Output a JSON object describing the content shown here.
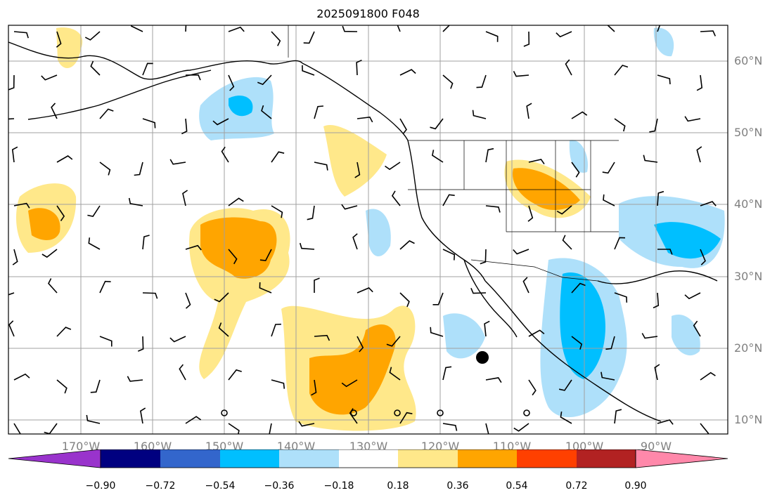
{
  "title": "2025091800 F048",
  "lat_labels": [
    "60°N",
    "50°N",
    "40°N",
    "30°N",
    "20°N",
    "10°N"
  ],
  "lon_labels": [
    "170°W",
    "160°W",
    "150°W",
    "140°W",
    "130°W",
    "120°W",
    "110°W",
    "100°W",
    "90°W"
  ],
  "colorbar": {
    "tick_labels": [
      "−0.90",
      "−0.72",
      "−0.54",
      "−0.36",
      "−0.18",
      "0.18",
      "0.36",
      "0.54",
      "0.72",
      "0.90"
    ],
    "colors": [
      "#9933cc",
      "#000080",
      "#3366cc",
      "#00bfff",
      "#aee0fa",
      "#ffffff",
      "#ffe88a",
      "#ffa500",
      "#ff4000",
      "#b22222",
      "#ff88aa"
    ]
  },
  "map": {
    "lat_range": [
      8,
      65
    ],
    "lon_range": [
      -180,
      -80
    ],
    "marker": {
      "lat": 19,
      "lon": -114,
      "label": ""
    }
  }
}
